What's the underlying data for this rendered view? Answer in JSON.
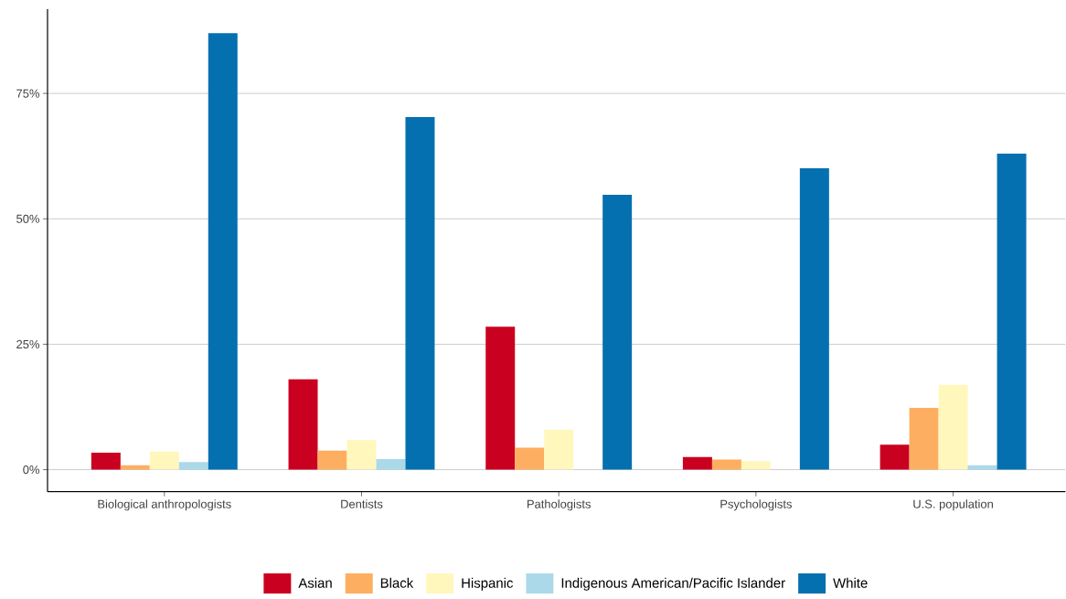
{
  "chart_data": {
    "type": "bar",
    "categories": [
      "Biological anthropologists",
      "Dentists",
      "Pathologists",
      "Psychologists",
      "U.S. population"
    ],
    "series": [
      {
        "name": "Asian",
        "color": "#ca0020",
        "values": [
          3.4,
          18.0,
          28.5,
          2.5,
          5.0
        ]
      },
      {
        "name": "Black",
        "color": "#fdae61",
        "values": [
          0.9,
          3.8,
          4.4,
          2.0,
          12.3
        ]
      },
      {
        "name": "Hispanic",
        "color": "#fff7bc",
        "values": [
          3.6,
          5.9,
          8.0,
          1.7,
          16.9
        ]
      },
      {
        "name": "Indigenous American/Pacific Islander",
        "color": "#abd9e9",
        "values": [
          1.5,
          2.1,
          null,
          null,
          0.9
        ]
      },
      {
        "name": "White",
        "color": "#0570b0",
        "values": [
          87.0,
          70.3,
          54.8,
          60.1,
          63.0
        ]
      }
    ],
    "ylim": [
      -4.4,
      91.8
    ],
    "yticks": [
      {
        "value": 0,
        "label": "0%"
      },
      {
        "value": 25,
        "label": "25%"
      },
      {
        "value": 50,
        "label": "50%"
      },
      {
        "value": 75,
        "label": "75%"
      }
    ],
    "grid": "y",
    "legend": "bottom"
  }
}
